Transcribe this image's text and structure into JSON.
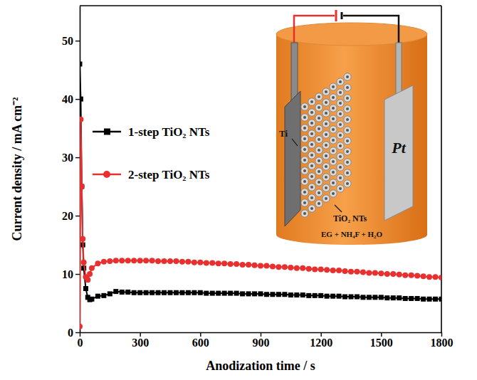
{
  "chart_data": {
    "type": "line",
    "x_label": "Anodization time / s",
    "y_label": "Current density / mA cm⁻²",
    "x": [
      0,
      5,
      10,
      15,
      20,
      30,
      40,
      50,
      60,
      90,
      120,
      150,
      180,
      210,
      240,
      270,
      300,
      330,
      360,
      390,
      420,
      450,
      480,
      510,
      540,
      570,
      600,
      630,
      660,
      690,
      720,
      750,
      780,
      810,
      840,
      870,
      900,
      930,
      960,
      990,
      1020,
      1050,
      1080,
      1110,
      1140,
      1170,
      1200,
      1230,
      1260,
      1290,
      1320,
      1350,
      1380,
      1410,
      1440,
      1470,
      1500,
      1530,
      1560,
      1590,
      1620,
      1650,
      1680,
      1710,
      1740,
      1770,
      1800
    ],
    "series": [
      {
        "name": "1-step TiO₂ NTs",
        "color": "#000000",
        "marker": "square",
        "values": [
          46,
          40,
          25,
          15,
          11,
          7.5,
          6,
          5.6,
          5.7,
          6.2,
          6.3,
          6.6,
          7,
          6.9,
          6.9,
          6.8,
          6.8,
          6.8,
          6.8,
          6.8,
          6.8,
          6.8,
          6.8,
          6.8,
          6.8,
          6.8,
          6.8,
          6.7,
          6.7,
          6.7,
          6.7,
          6.7,
          6.7,
          6.6,
          6.6,
          6.6,
          6.6,
          6.5,
          6.5,
          6.5,
          6.5,
          6.4,
          6.4,
          6.4,
          6.3,
          6.3,
          6.3,
          6.2,
          6.2,
          6.2,
          6.1,
          6.1,
          6.1,
          6,
          6,
          6,
          6,
          5.9,
          5.9,
          5.9,
          5.8,
          5.8,
          5.8,
          5.7,
          5.7,
          5.7,
          5.7
        ]
      },
      {
        "name": "2-step TiO₂ NTs",
        "color": "#e8312f",
        "marker": "circle",
        "values": [
          1,
          36.5,
          25,
          16,
          12,
          9.5,
          9,
          10,
          11,
          11.8,
          12.1,
          12.2,
          12.3,
          12.3,
          12.3,
          12.3,
          12.3,
          12.3,
          12.3,
          12.2,
          12.2,
          12.2,
          12.2,
          12.1,
          12.1,
          12,
          12,
          11.9,
          11.9,
          11.8,
          11.8,
          11.7,
          11.7,
          11.6,
          11.6,
          11.5,
          11.4,
          11.4,
          11.3,
          11.2,
          11.2,
          11.1,
          11,
          11,
          10.9,
          10.8,
          10.8,
          10.7,
          10.6,
          10.6,
          10.5,
          10.4,
          10.4,
          10.3,
          10.2,
          10.2,
          10.1,
          10,
          10,
          9.9,
          9.8,
          9.8,
          9.7,
          9.6,
          9.5,
          9.5,
          9.4
        ]
      }
    ],
    "xlim": [
      0,
      1800
    ],
    "xticks": [
      0,
      300,
      600,
      900,
      1200,
      1500,
      1800
    ],
    "ylim": [
      0,
      56
    ],
    "yticks": [
      0,
      10,
      20,
      30,
      40,
      50
    ],
    "grid": false,
    "legend": "left",
    "annotations": [
      "Ti",
      "TiO₂ NTs",
      "EG + NH₄F + H₂O",
      "Pt"
    ]
  }
}
